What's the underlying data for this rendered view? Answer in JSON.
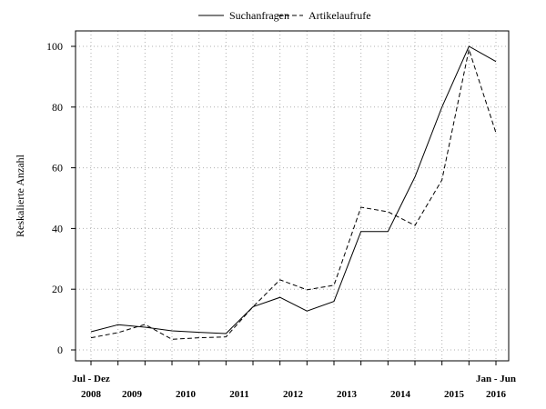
{
  "chart_data": {
    "type": "line",
    "title": "",
    "xlabel": "",
    "ylabel": "Reskalierte Anzahl",
    "ylim": [
      0,
      100
    ],
    "yticks": [
      0,
      20,
      40,
      60,
      80,
      100
    ],
    "grid": true,
    "legend_position": "top-center",
    "x_period_labels": [
      "Jul - Dez\n2008",
      "2009",
      "2010",
      "2011",
      "2012",
      "2013",
      "2014",
      "2015",
      "Jan - Jun\n2016"
    ],
    "x": [
      0,
      1,
      2,
      3,
      4,
      5,
      6,
      7,
      8,
      9,
      10,
      11,
      12,
      13,
      14,
      15
    ],
    "series": [
      {
        "name": "Suchanfragen",
        "style": "solid",
        "values": [
          6,
          8.3,
          7.5,
          6.3,
          5.8,
          5.4,
          14.2,
          17.3,
          12.8,
          16,
          39,
          39,
          57,
          80,
          100,
          95
        ]
      },
      {
        "name": "Artikelaufrufe",
        "style": "dashed",
        "values": [
          4,
          5.7,
          8.4,
          3.5,
          4,
          4.3,
          14.2,
          23.1,
          19.8,
          21.3,
          47,
          45.5,
          41,
          56,
          99,
          71.5
        ]
      }
    ]
  }
}
